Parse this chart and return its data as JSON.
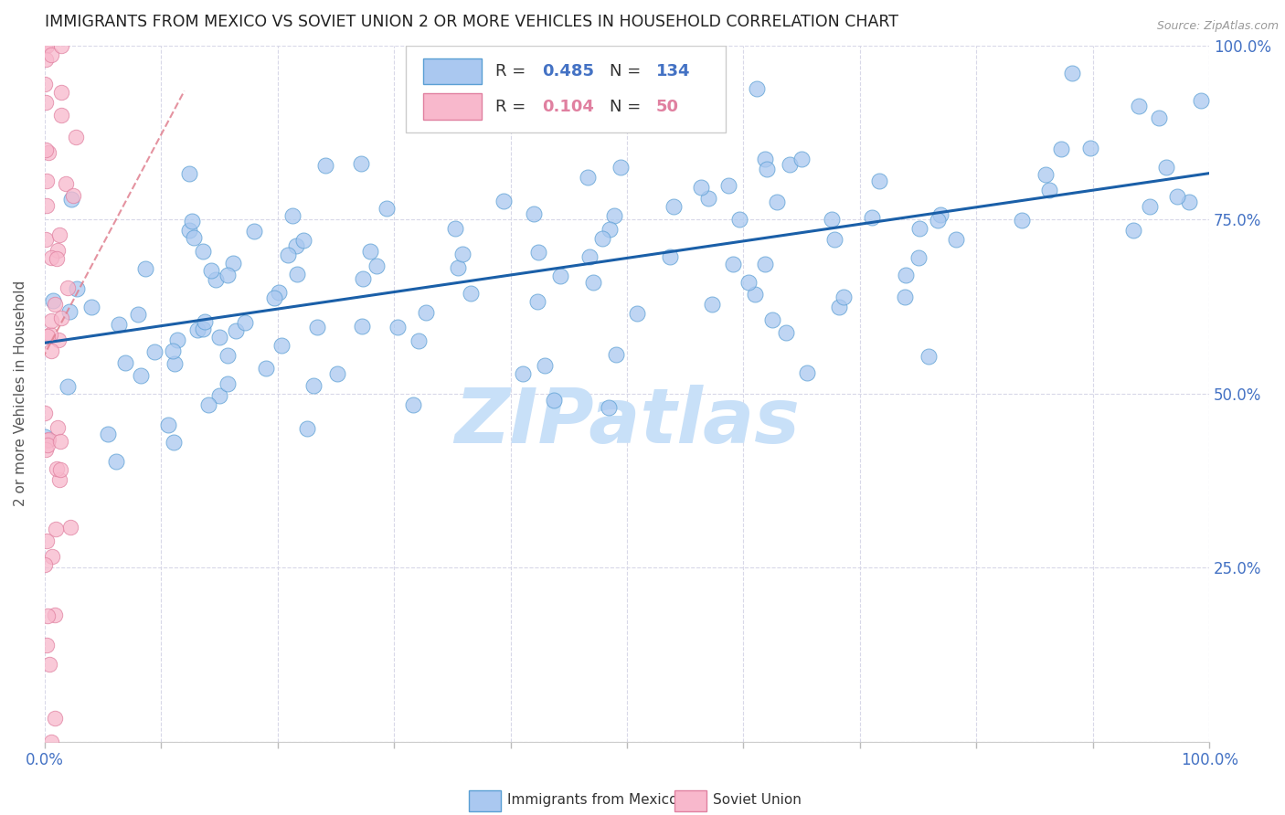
{
  "title": "IMMIGRANTS FROM MEXICO VS SOVIET UNION 2 OR MORE VEHICLES IN HOUSEHOLD CORRELATION CHART",
  "source": "Source: ZipAtlas.com",
  "ylabel": "2 or more Vehicles in Household",
  "mexico_R": 0.485,
  "mexico_N": 134,
  "soviet_R": 0.104,
  "soviet_N": 50,
  "mexico_color": "#aac8f0",
  "mexico_edge_color": "#5a9fd4",
  "mexico_line_color": "#1a5fa8",
  "soviet_color": "#f8b8cc",
  "soviet_edge_color": "#e080a0",
  "soviet_line_color": "#e08090",
  "background_color": "#ffffff",
  "grid_color": "#d8d8e8",
  "title_color": "#222222",
  "axis_label_color": "#4472c4",
  "watermark_color": "#c8e0f8",
  "figsize": [
    14.06,
    8.92
  ],
  "dpi": 100
}
